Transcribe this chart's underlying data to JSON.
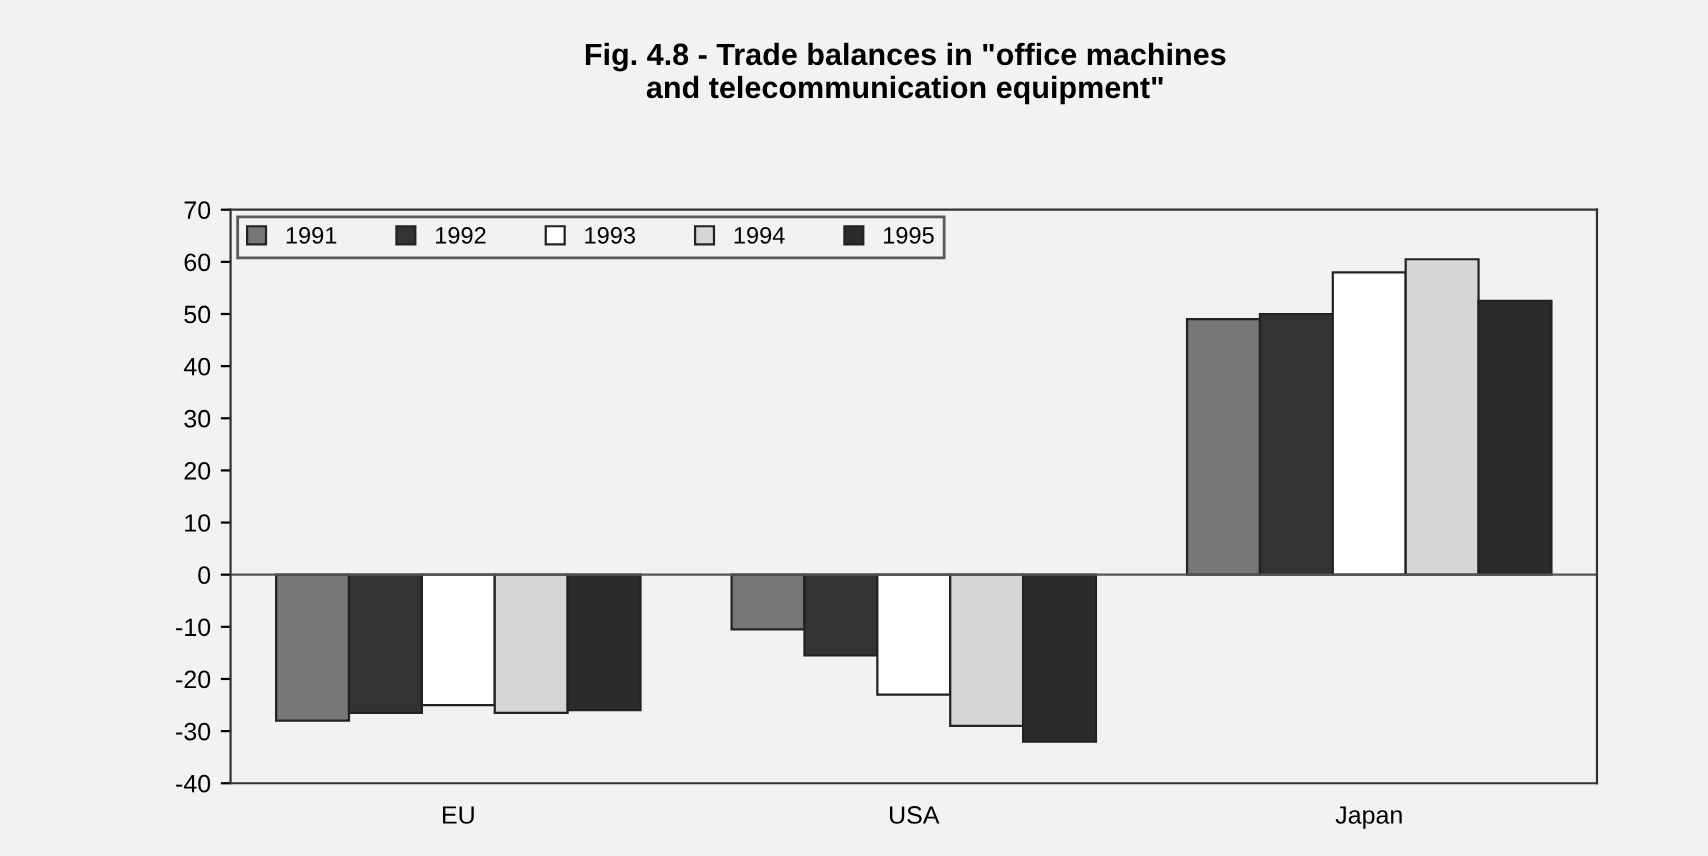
{
  "chart_data": {
    "type": "bar",
    "title": "Fig. 4.8 - Trade balances in \"office machines\nand telecommunication equipment\"",
    "categories": [
      "EU",
      "USA",
      "Japan"
    ],
    "series": [
      {
        "name": "1991",
        "color": "#777777",
        "values": [
          -28,
          -10.5,
          49
        ]
      },
      {
        "name": "1992",
        "color": "#333333",
        "values": [
          -26.5,
          -15.5,
          50
        ]
      },
      {
        "name": "1993",
        "color": "#ffffff",
        "values": [
          -25,
          -23,
          58
        ]
      },
      {
        "name": "1994",
        "color": "#d6d6d6",
        "values": [
          -26.5,
          -29,
          60.5
        ]
      },
      {
        "name": "1995",
        "color": "#2b2b2b",
        "values": [
          -26,
          -32,
          52.5
        ]
      }
    ],
    "ylim": [
      -40,
      70
    ],
    "yticks": [
      -40,
      -30,
      -20,
      -10,
      0,
      10,
      20,
      30,
      40,
      50,
      60,
      70
    ],
    "ref_lines": [
      {
        "axis": "y",
        "value": 0,
        "color": "#555555"
      }
    ],
    "legend": "top left"
  }
}
